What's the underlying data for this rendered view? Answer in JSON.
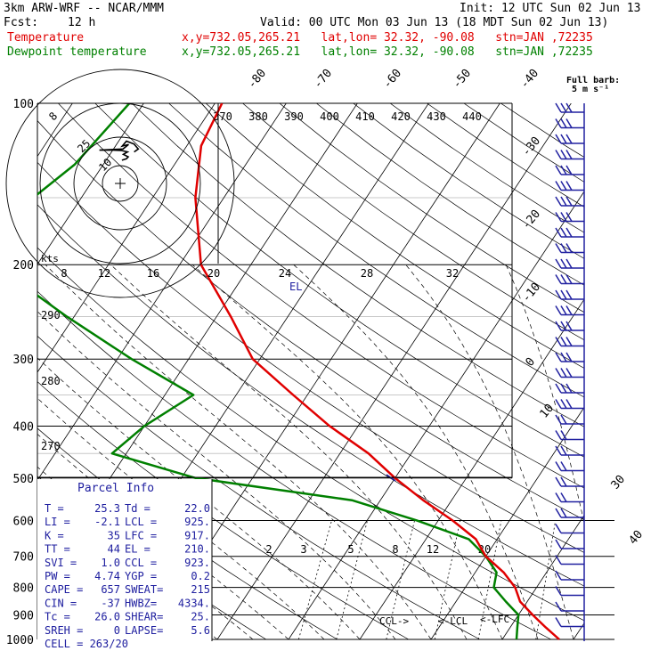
{
  "header": {
    "model": "3km ARW-WRF -- NCAR/MMM",
    "init": "Init: 12 UTC Sun 02 Jun 13",
    "fcst_label": "Fcst:",
    "fcst_value": "12 h",
    "valid": "Valid: 00 UTC Mon 03 Jun 13 (18 MDT Sun 02 Jun 13)",
    "temp_label": "Temperature",
    "temp_info": "x,y=732.05,265.21   lat,lon= 32.32, -90.08   stn=JAN ,72235",
    "dew_label": "Dewpoint temperature",
    "dew_info": "x,y=732.05,265.21   lat,lon= 32.32, -90.08   stn=JAN ,72235",
    "barb_title": "Full barb:",
    "barb_unit": "5 m s⁻¹",
    "colors": {
      "temperature": "#e00000",
      "dewpoint": "#008000",
      "wind": "#2020a0",
      "hodo": "#000000"
    }
  },
  "chart_data": {
    "type": "skew-t",
    "pressure_levels": [
      100,
      200,
      300,
      400,
      500,
      600,
      700,
      800,
      900,
      1000
    ],
    "isotherm_labels": [
      "-80",
      "-70",
      "-60",
      "-50",
      "-40",
      "-30",
      "-20",
      "-10",
      "0",
      "10",
      "30",
      "40"
    ],
    "theta_labels": [
      "370",
      "380",
      "390",
      "400",
      "410",
      "420",
      "430",
      "440"
    ],
    "dry_adiabat_labels": [
      "290",
      "280",
      "270"
    ],
    "mixing_ratio_labels": [
      "2",
      "3",
      "5",
      "8",
      "12",
      "20"
    ],
    "temperature_profile": [
      [
        100,
        -69
      ],
      [
        120,
        -68
      ],
      [
        150,
        -64
      ],
      [
        200,
        -57
      ],
      [
        250,
        -48
      ],
      [
        300,
        -41
      ],
      [
        350,
        -32
      ],
      [
        400,
        -24
      ],
      [
        450,
        -16
      ],
      [
        500,
        -10
      ],
      [
        550,
        -4
      ],
      [
        600,
        2
      ],
      [
        650,
        7
      ],
      [
        700,
        10
      ],
      [
        750,
        14
      ],
      [
        800,
        17
      ],
      [
        850,
        19
      ],
      [
        900,
        22
      ],
      [
        950,
        25
      ],
      [
        1000,
        28
      ]
    ],
    "dewpoint_profile": [
      [
        100,
        -82
      ],
      [
        130,
        -84
      ],
      [
        160,
        -88
      ],
      [
        200,
        -86
      ],
      [
        250,
        -71
      ],
      [
        300,
        -58
      ],
      [
        350,
        -46
      ],
      [
        400,
        -50
      ],
      [
        450,
        -52
      ],
      [
        500,
        -38
      ],
      [
        550,
        -14
      ],
      [
        600,
        -3
      ],
      [
        650,
        6
      ],
      [
        700,
        10
      ],
      [
        750,
        13
      ],
      [
        800,
        14
      ],
      [
        850,
        17
      ],
      [
        900,
        20
      ],
      [
        950,
        21
      ],
      [
        1000,
        22
      ]
    ],
    "parcel_markers": [
      {
        "label": "EL",
        "pressure": 210
      },
      {
        "label": "CCL->",
        "pressure": 925
      },
      {
        "label": "<-LCL",
        "pressure": 925
      },
      {
        "label": "<-LFC",
        "pressure": 917
      }
    ],
    "hodograph": {
      "speed_rings_label": [
        "8",
        "12",
        "16",
        "20",
        "24",
        "28",
        "32"
      ],
      "unit": "kts",
      "ring_labels": [
        "25",
        "10"
      ],
      "corner_label": "8",
      "trace": [
        [
          0.5,
          -5.5
        ],
        [
          1.8,
          -7
        ],
        [
          2.3,
          -9
        ],
        [
          0.9,
          -11.5
        ],
        [
          2.1,
          -14
        ],
        [
          0.2,
          -15.5
        ],
        [
          -3,
          -16
        ],
        [
          -6,
          -15.8
        ],
        [
          0.8,
          -17
        ],
        [
          2.4,
          -21.5
        ],
        [
          0.6,
          -20
        ],
        [
          1.8,
          -25
        ],
        [
          4,
          -22
        ],
        [
          5.2,
          -17
        ],
        [
          4,
          -14
        ]
      ]
    }
  },
  "parcel_info": {
    "title": "Parcel Info",
    "rows": [
      [
        "T  =",
        "25.3",
        "Td =",
        "22.0"
      ],
      [
        "LI =",
        "-2.1",
        "LCL =",
        "925."
      ],
      [
        "K  =",
        "35",
        "LFC =",
        "917."
      ],
      [
        "TT =",
        "44",
        "EL  =",
        "210."
      ],
      [
        "SVI =",
        "1.0",
        "CCL =",
        "923."
      ],
      [
        "PW  =",
        "4.74",
        "YGP =",
        "0.2"
      ],
      [
        "CAPE =",
        "657",
        "SWEAT=",
        "215"
      ],
      [
        "CIN  =",
        "-37",
        "HWBZ=",
        "4334."
      ],
      [
        "Tc  =",
        "26.0",
        "SHEAR=",
        "25."
      ],
      [
        "SREH =",
        "0",
        "LAPSE=",
        "5.6"
      ],
      [
        "CELL = 263/20",
        "",
        "",
        ""
      ]
    ]
  }
}
